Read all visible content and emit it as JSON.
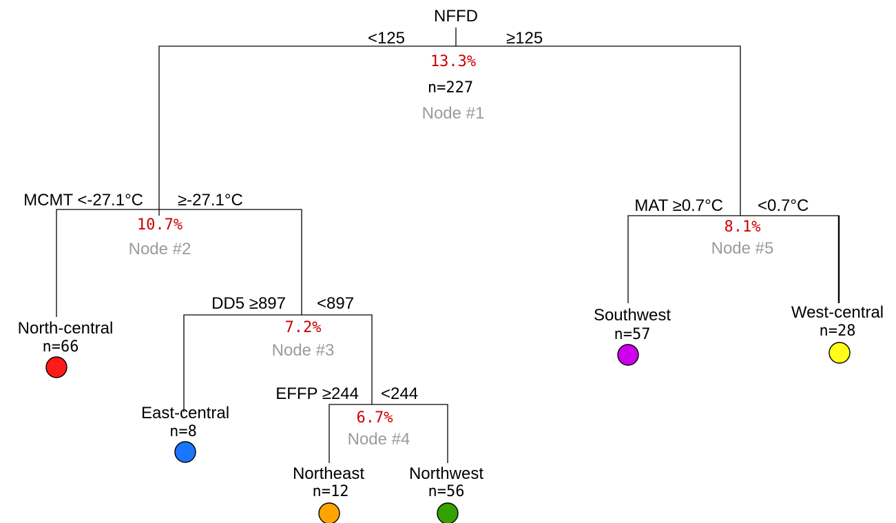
{
  "root": {
    "variable": "NFFD",
    "left_branch": "<125",
    "right_branch": "≥125",
    "error": "13.3%",
    "n": "n=227",
    "node_id": "Node #1"
  },
  "node2": {
    "left_branch": "MCMT <-27.1°C",
    "right_branch": "≥-27.1°C",
    "error": "10.7%",
    "node_id": "Node #2"
  },
  "node3": {
    "left_branch": "DD5 ≥897",
    "right_branch": "<897",
    "error": "7.2%",
    "node_id": "Node #3"
  },
  "node4": {
    "left_branch": "EFFP ≥244",
    "right_branch": "<244",
    "error": "6.7%",
    "node_id": "Node #4"
  },
  "node5": {
    "left_branch": "MAT ≥0.7°C",
    "right_branch": "<0.7°C",
    "error": "8.1%",
    "node_id": "Node #5"
  },
  "leaves": {
    "north_central": {
      "name": "North-central",
      "n": "n=66",
      "color": "#ff1a1a"
    },
    "east_central": {
      "name": "East-central",
      "n": "n=8",
      "color": "#1a75ff"
    },
    "northeast": {
      "name": "Northeast",
      "n": "n=12",
      "color": "#ffa500"
    },
    "northwest": {
      "name": "Northwest",
      "n": "n=56",
      "color": "#33a100"
    },
    "southwest": {
      "name": "Southwest",
      "n": "n=57",
      "color": "#cc00ee"
    },
    "west_central": {
      "name": "West-central",
      "n": "n=28",
      "color": "#ffff1a"
    }
  }
}
